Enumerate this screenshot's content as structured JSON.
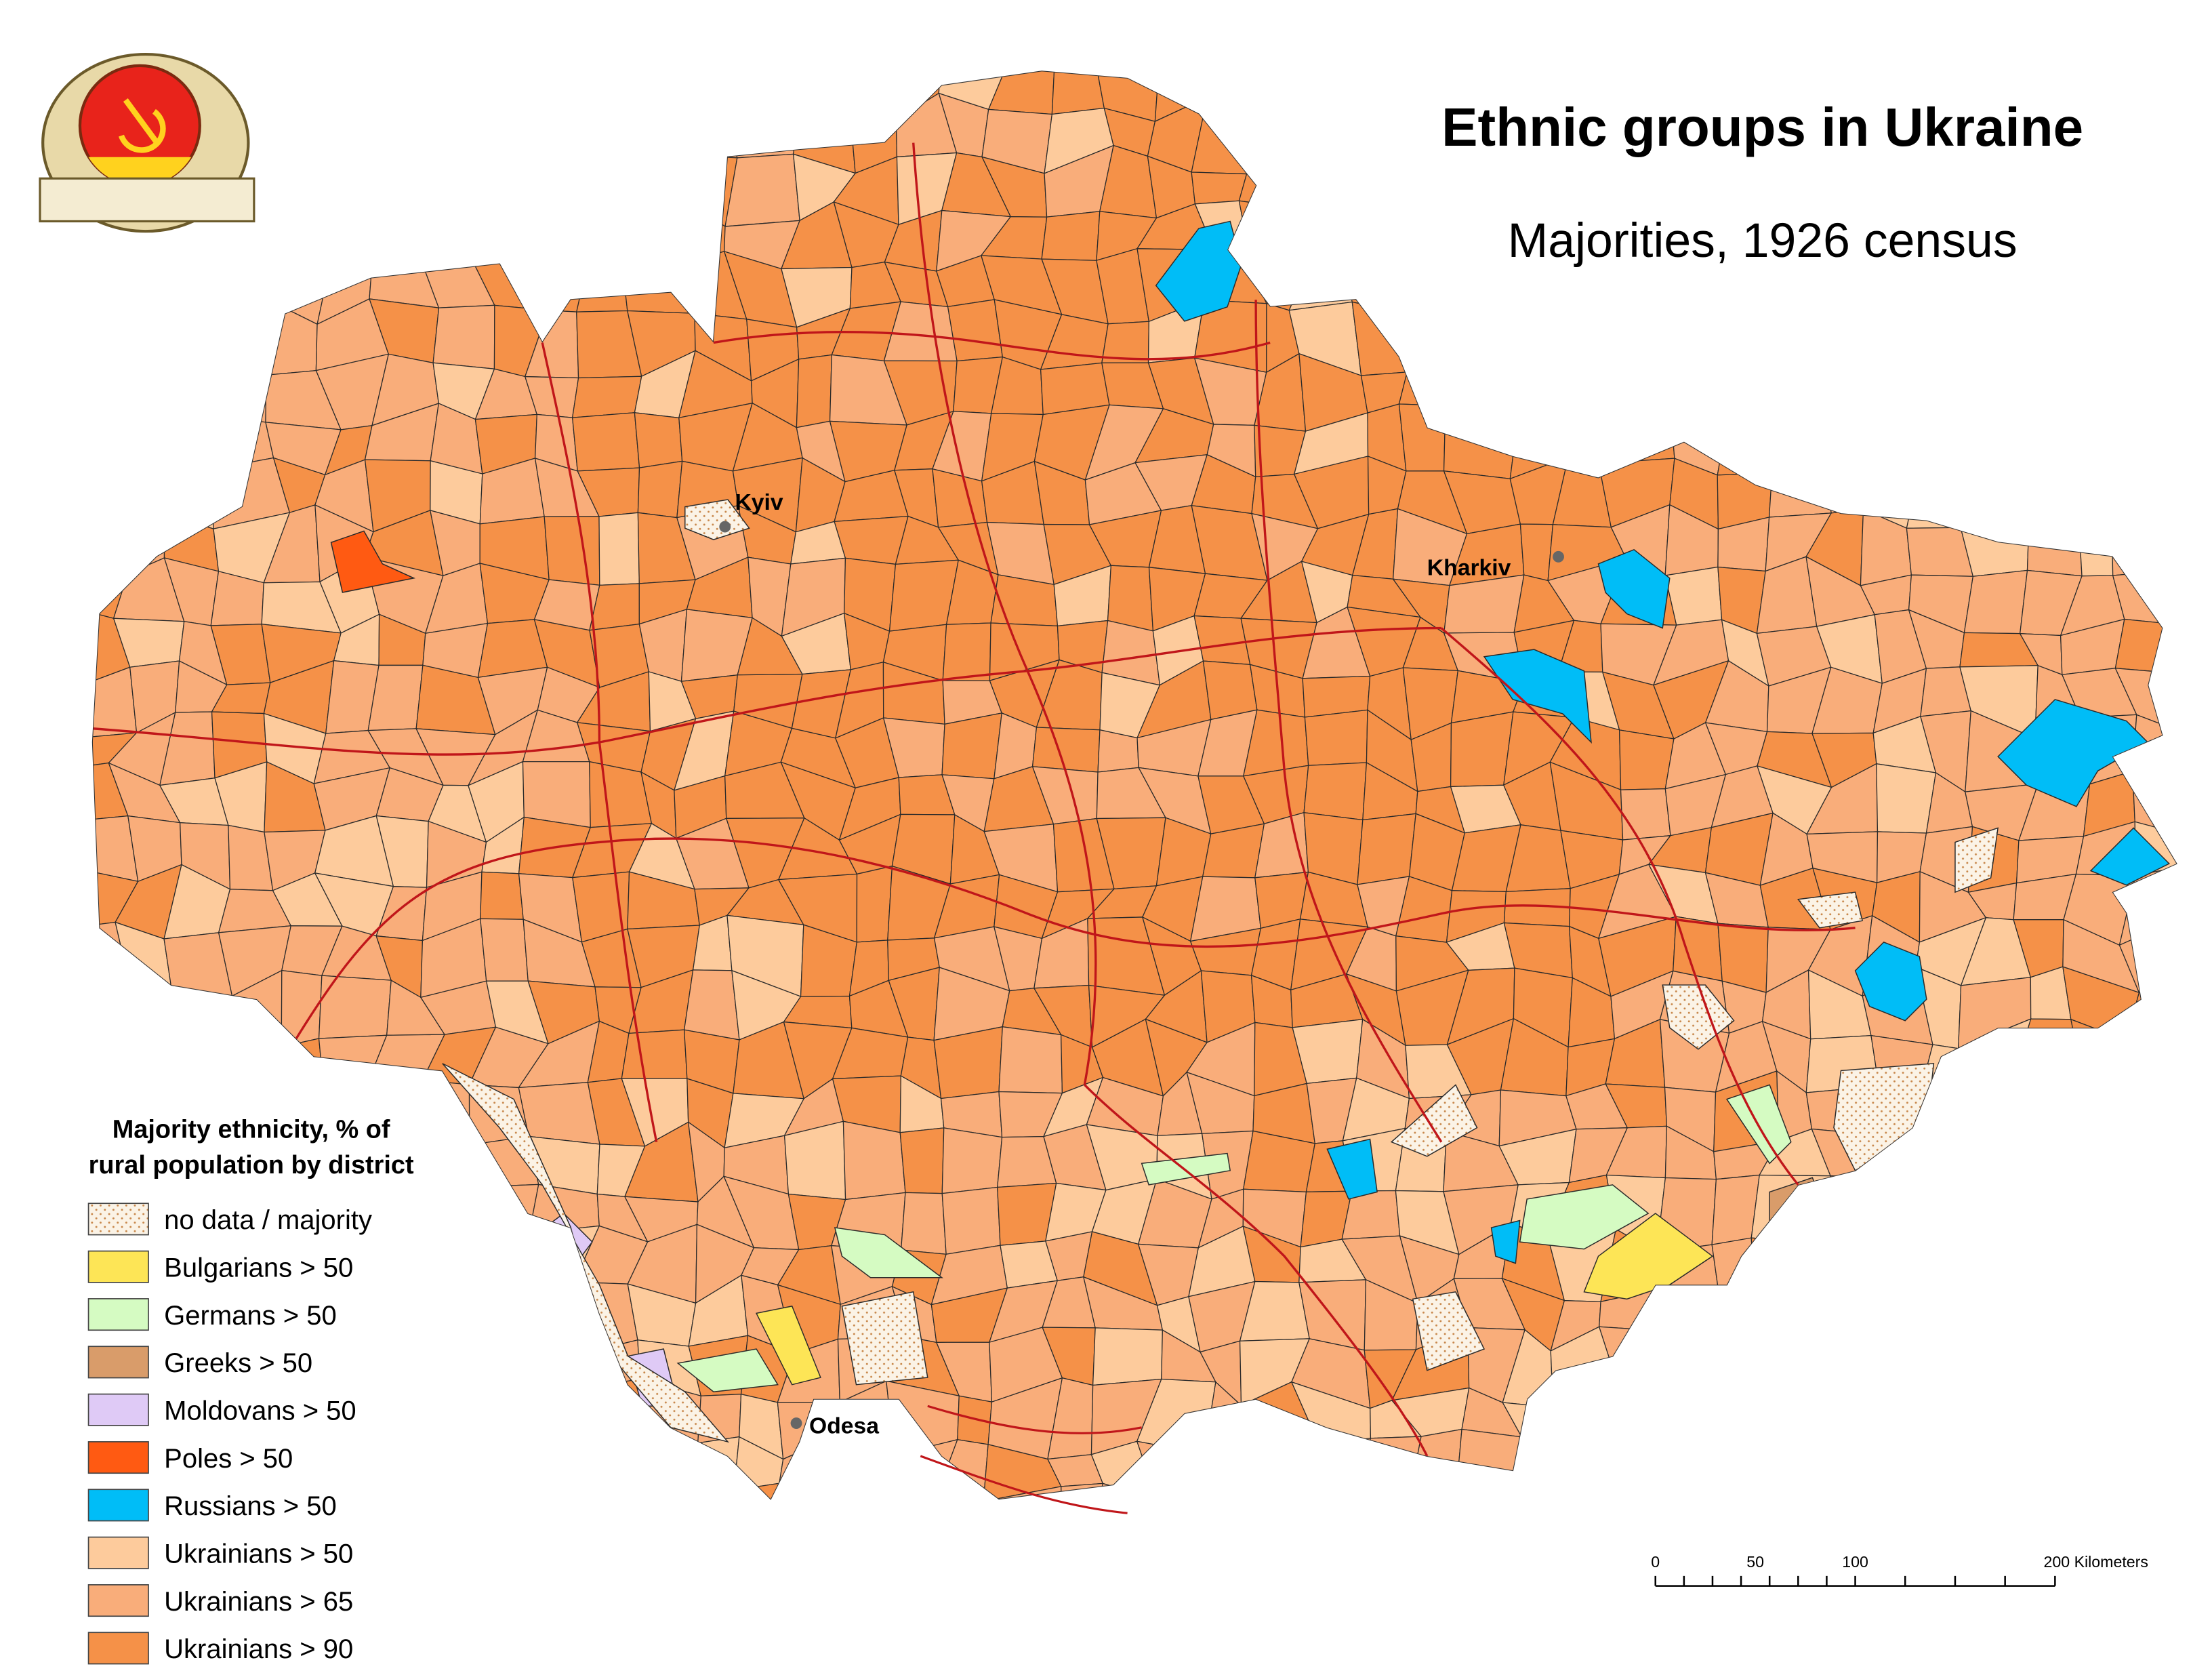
{
  "title": "Ethnic groups in Ukraine",
  "subtitle": "Majorities, 1926 census",
  "legend": {
    "title": [
      "Majority ethnicity, % of",
      "rural population by district"
    ],
    "items": [
      {
        "label": "no data / majority",
        "color": "#fbf3e6",
        "pattern": "dots"
      },
      {
        "label": "Bulgarians > 50",
        "color": "#fde556"
      },
      {
        "label": "Germans > 50",
        "color": "#d5fbc2"
      },
      {
        "label": "Greeks > 50",
        "color": "#d99c6a"
      },
      {
        "label": "Moldovans > 50",
        "color": "#dfcaf6"
      },
      {
        "label": "Poles > 50",
        "color": "#ff5a12"
      },
      {
        "label": "Russians > 50",
        "color": "#00bdf7"
      },
      {
        "label": "Ukrainians > 50",
        "color": "#fdcb9c"
      },
      {
        "label": "Ukrainians > 65",
        "color": "#f9ad7a"
      },
      {
        "label": "Ukrainians > 90",
        "color": "#f59148"
      }
    ]
  },
  "cities": [
    {
      "name": "Kyiv"
    },
    {
      "name": "Kharkiv"
    },
    {
      "name": "Odesa"
    }
  ],
  "scale_bar": {
    "labels": [
      "0",
      "50",
      "100",
      "200 Kilometers"
    ]
  }
}
